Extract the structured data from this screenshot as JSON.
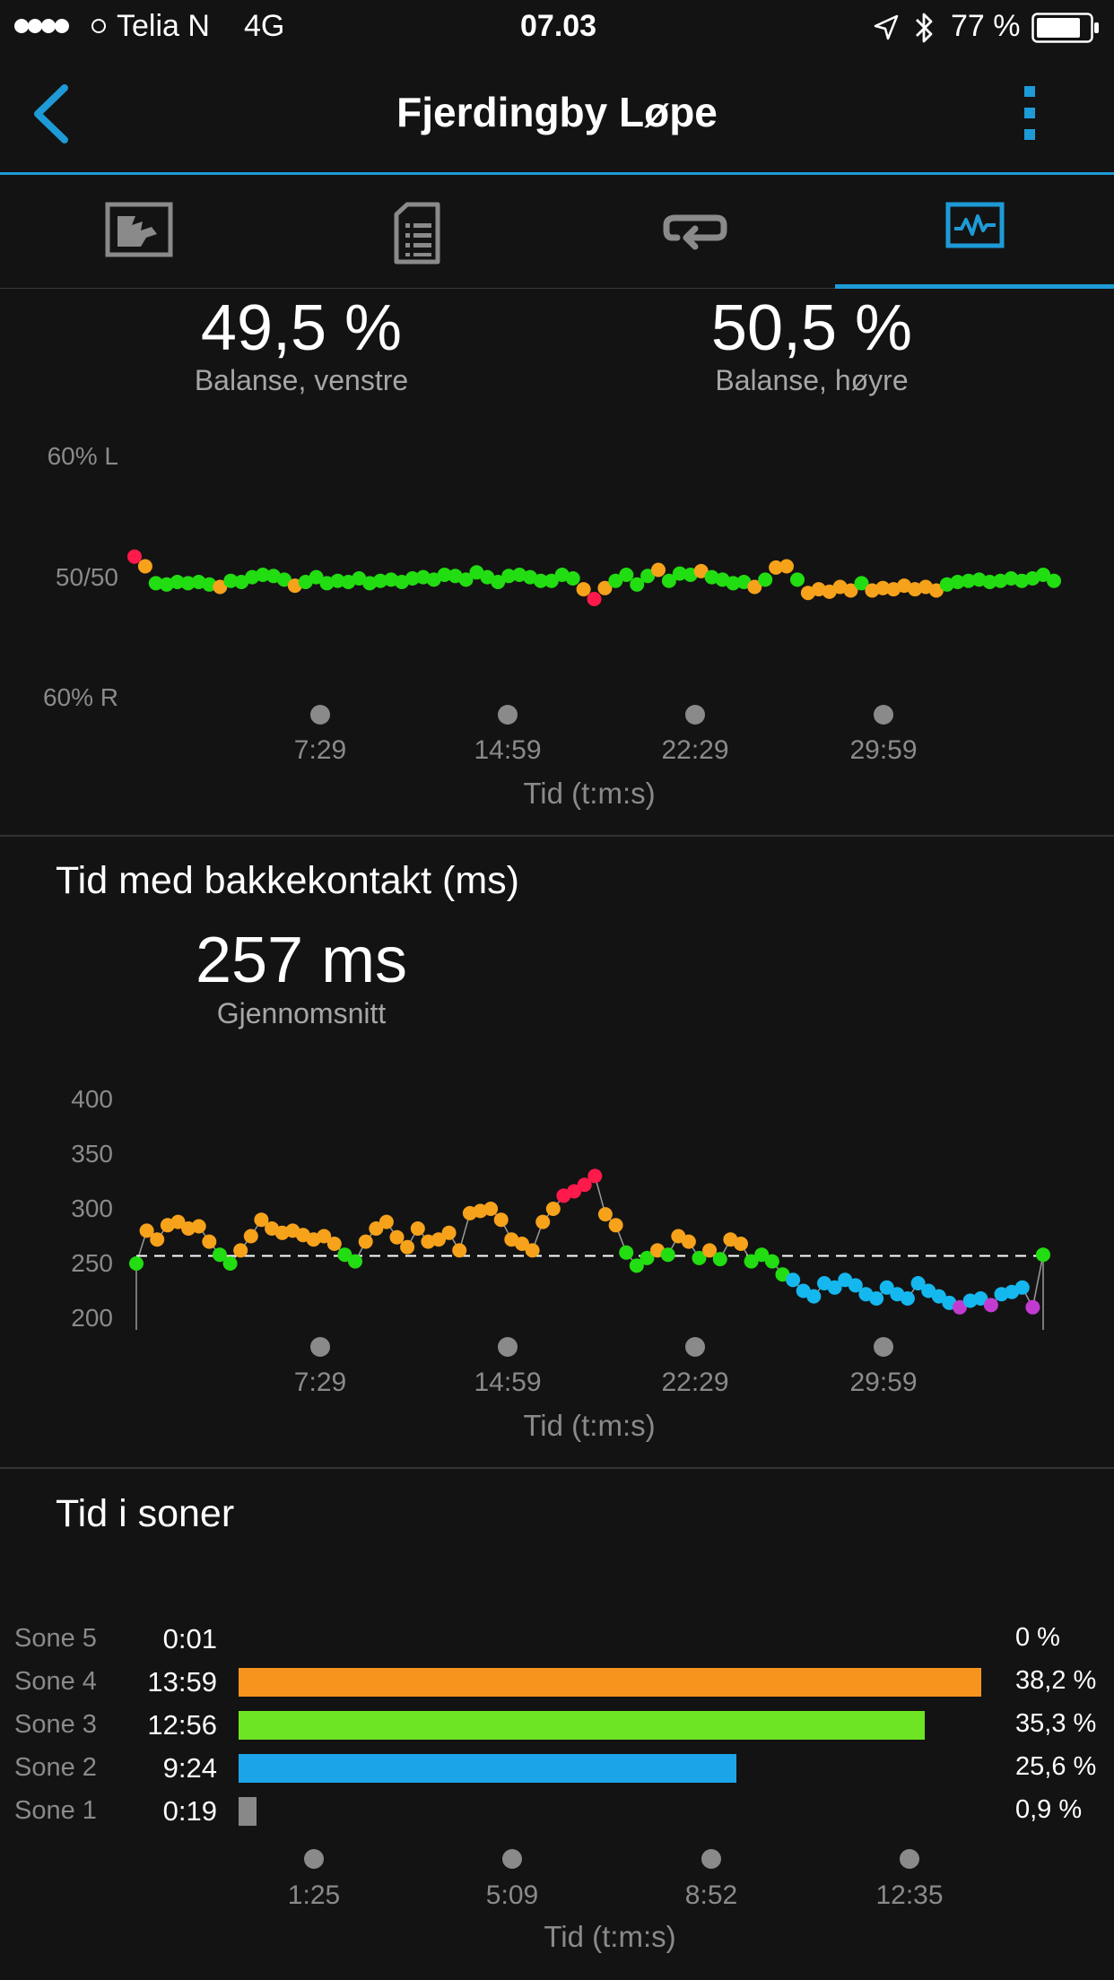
{
  "status_bar": {
    "carrier": "Telia N",
    "network": "4G",
    "time": "07.03",
    "battery": "77 %"
  },
  "nav": {
    "title": "Fjerdingby Løpe"
  },
  "tabs": [
    {
      "icon": "map-overview-icon"
    },
    {
      "icon": "details-document-icon"
    },
    {
      "icon": "laps-loop-icon"
    },
    {
      "icon": "charts-activity-icon",
      "active": true
    }
  ],
  "balance": {
    "left_value": "49,5 %",
    "left_label": "Balanse, venstre",
    "right_value": "50,5 %",
    "right_label": "Balanse, høyre"
  },
  "balance_chart": {
    "y_labels": [
      "60% L",
      "50/50",
      "60% R"
    ],
    "x_labels": [
      "7:29",
      "14:59",
      "22:29",
      "29:59"
    ],
    "x_title": "Tid (t:m:s)"
  },
  "ground_contact": {
    "title": "Tid med bakkekontakt (ms)",
    "value": "257 ms",
    "value_label": "Gjennomsnitt",
    "y_labels": [
      "400",
      "350",
      "300",
      "250",
      "200"
    ],
    "x_labels": [
      "7:29",
      "14:59",
      "22:29",
      "29:59"
    ],
    "x_title": "Tid (t:m:s)"
  },
  "zones": {
    "title": "Tid i soner",
    "rows": [
      {
        "name": "Sone 5",
        "time": "0:01",
        "pct": "0 %",
        "fraction": 0.0,
        "color": "#8e44ad"
      },
      {
        "name": "Sone 4",
        "time": "13:59",
        "pct": "38,2 %",
        "fraction": 0.382,
        "color": "#f7941d"
      },
      {
        "name": "Sone 3",
        "time": "12:56",
        "pct": "35,3 %",
        "fraction": 0.353,
        "color": "#6ee524"
      },
      {
        "name": "Sone 2",
        "time": "9:24",
        "pct": "25,6 %",
        "fraction": 0.256,
        "color": "#1ba5e8"
      },
      {
        "name": "Sone 1",
        "time": "0:19",
        "pct": "0,9 %",
        "fraction": 0.009,
        "color": "#888888"
      }
    ],
    "x_labels": [
      "1:25",
      "5:09",
      "8:52",
      "12:35"
    ],
    "x_title": "Tid (t:m:s)"
  },
  "colors": {
    "accent": "#1e9bd7",
    "green": "#22dd11",
    "orange": "#f7a21b",
    "red": "#ff1a4b",
    "blue": "#15b8ee",
    "purple": "#c23bd0"
  },
  "chart_data": [
    {
      "type": "scatter",
      "title": "",
      "xlabel": "Tid (t:m:s)",
      "ylabel": "",
      "note": "Ground contact time balance over run",
      "x_ticks": [
        "7:29",
        "14:59",
        "22:29",
        "29:59"
      ],
      "y_ticks": [
        "60% R",
        "50/50",
        "60% L"
      ],
      "series": [
        {
          "values": [
            51.8,
            51.0,
            49.6,
            49.5,
            49.7,
            49.6,
            49.7,
            49.5,
            49.3,
            49.8,
            49.7,
            50.1,
            50.3,
            50.2,
            49.9,
            49.4,
            49.7,
            50.1,
            49.6,
            49.8,
            49.7,
            50.0,
            49.6,
            49.8,
            49.9,
            49.7,
            50.0,
            50.1,
            49.9,
            50.3,
            50.2,
            49.9,
            50.5,
            50.1,
            49.7,
            50.2,
            50.3,
            50.1,
            49.8,
            49.8,
            50.3,
            50.0,
            49.1,
            48.3,
            49.2,
            49.8,
            50.3,
            49.5,
            50.2,
            50.7,
            49.8,
            50.4,
            50.3,
            50.6,
            50.1,
            49.9,
            49.6,
            49.7,
            49.3,
            49.9,
            50.9,
            51.0,
            49.9,
            48.8,
            49.1,
            48.9,
            49.3,
            49.0,
            49.6,
            49.0,
            49.2,
            49.1,
            49.4,
            49.1,
            49.3,
            49.0,
            49.5,
            49.7,
            49.8,
            49.9,
            49.7,
            49.8,
            50.0,
            49.8,
            50.0,
            50.3,
            49.8
          ]
        }
      ]
    },
    {
      "type": "scatter",
      "title": "Tid med bakkekontakt (ms)",
      "xlabel": "Tid (t:m:s)",
      "ylabel": "",
      "ylim": [
        200,
        400
      ],
      "average": 257,
      "x_ticks": [
        "7:29",
        "14:59",
        "22:29",
        "29:59"
      ],
      "series": [
        {
          "values": [
            250,
            280,
            272,
            285,
            288,
            282,
            284,
            270,
            258,
            250,
            262,
            275,
            290,
            282,
            278,
            280,
            276,
            272,
            275,
            268,
            258,
            252,
            270,
            282,
            288,
            274,
            265,
            282,
            270,
            272,
            278,
            262,
            296,
            298,
            300,
            290,
            272,
            268,
            262,
            288,
            300,
            312,
            316,
            322,
            330,
            295,
            285,
            260,
            248,
            255,
            262,
            258,
            275,
            270,
            255,
            262,
            254,
            272,
            268,
            252,
            258,
            252,
            240,
            235,
            225,
            220,
            232,
            228,
            235,
            230,
            222,
            218,
            228,
            222,
            218,
            232,
            225,
            220,
            214,
            210,
            216,
            218,
            212,
            222,
            224,
            228,
            210,
            258
          ]
        }
      ]
    },
    {
      "type": "bar",
      "title": "Tid i soner",
      "xlabel": "Tid (t:m:s)",
      "categories": [
        "Sone 5",
        "Sone 4",
        "Sone 3",
        "Sone 2",
        "Sone 1"
      ],
      "values": [
        0.0,
        38.2,
        35.3,
        25.6,
        0.9
      ],
      "x_ticks": [
        "1:25",
        "5:09",
        "8:52",
        "12:35"
      ]
    }
  ]
}
